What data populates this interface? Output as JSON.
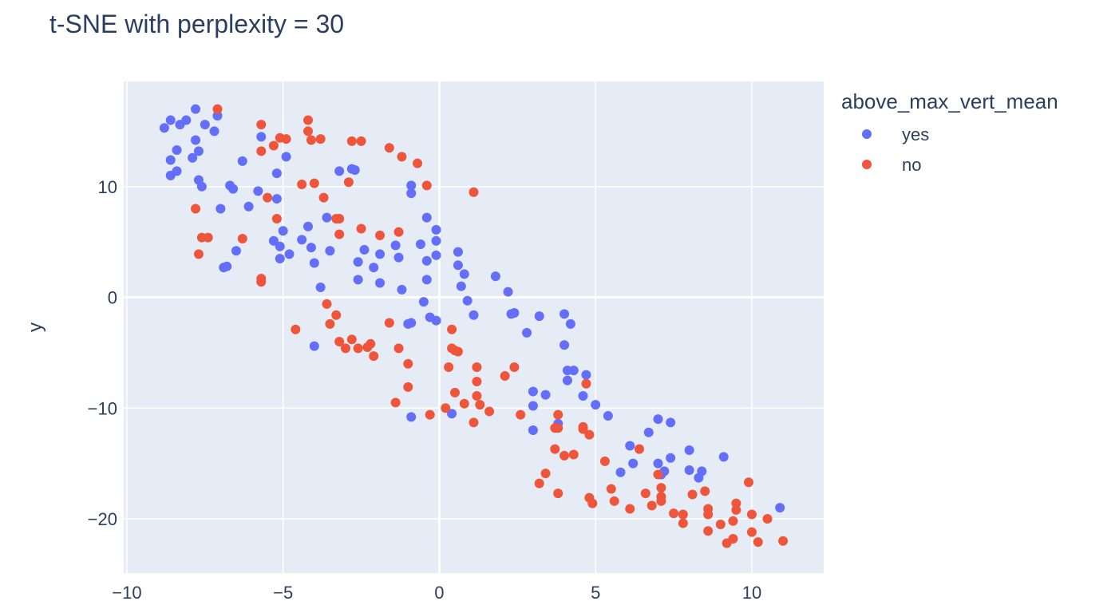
{
  "chart_data": {
    "type": "scatter",
    "title": "t-SNE with perplexity = 30",
    "xlabel": "",
    "ylabel": "y",
    "xlim": [
      -10.1,
      12.3
    ],
    "ylim": [
      -24.9,
      19.5
    ],
    "xticks": [
      -10,
      -5,
      0,
      5,
      10
    ],
    "yticks": [
      -20,
      -10,
      0,
      10
    ],
    "tick_labels_x": [
      "−10",
      "−5",
      "0",
      "5",
      "10"
    ],
    "tick_labels_y": [
      "−20",
      "−10",
      "0",
      "10"
    ],
    "grid": true,
    "legend": {
      "title": "above_max_vert_mean",
      "placement": "right"
    },
    "series": [
      {
        "name": "yes",
        "color": "#636efa",
        "points": [
          [
            -8.8,
            15.3
          ],
          [
            -8.6,
            16.0
          ],
          [
            -8.6,
            12.4
          ],
          [
            -8.6,
            11.0
          ],
          [
            -8.4,
            11.4
          ],
          [
            -8.4,
            13.3
          ],
          [
            -8.3,
            15.6
          ],
          [
            -8.1,
            16.0
          ],
          [
            -7.9,
            12.6
          ],
          [
            -7.8,
            17.0
          ],
          [
            -7.8,
            14.2
          ],
          [
            -7.7,
            13.2
          ],
          [
            -7.7,
            10.6
          ],
          [
            -7.6,
            10.0
          ],
          [
            -7.5,
            15.6
          ],
          [
            -7.2,
            15.0
          ],
          [
            -7.1,
            16.4
          ],
          [
            -7.0,
            8.0
          ],
          [
            -6.9,
            2.7
          ],
          [
            -6.8,
            2.8
          ],
          [
            -6.7,
            10.1
          ],
          [
            -6.6,
            9.8
          ],
          [
            -6.5,
            4.2
          ],
          [
            -6.3,
            12.3
          ],
          [
            -6.1,
            8.2
          ],
          [
            -5.8,
            9.6
          ],
          [
            -5.7,
            14.5
          ],
          [
            -5.3,
            5.1
          ],
          [
            -5.2,
            11.2
          ],
          [
            -5.2,
            8.9
          ],
          [
            -5.1,
            4.6
          ],
          [
            -5.1,
            3.5
          ],
          [
            -5.0,
            6.0
          ],
          [
            -4.9,
            12.7
          ],
          [
            -4.8,
            3.9
          ],
          [
            -4.4,
            5.2
          ],
          [
            -4.2,
            6.4
          ],
          [
            -4.1,
            4.5
          ],
          [
            -4.0,
            3.1
          ],
          [
            -4.0,
            -4.4
          ],
          [
            -3.8,
            0.9
          ],
          [
            -3.6,
            7.2
          ],
          [
            -3.5,
            4.2
          ],
          [
            -3.2,
            11.4
          ],
          [
            -2.8,
            11.6
          ],
          [
            -2.7,
            11.5
          ],
          [
            -2.6,
            3.2
          ],
          [
            -2.6,
            1.6
          ],
          [
            -2.4,
            4.3
          ],
          [
            -2.1,
            2.7
          ],
          [
            -1.9,
            1.3
          ],
          [
            -1.9,
            3.9
          ],
          [
            -1.4,
            4.7
          ],
          [
            -1.3,
            3.6
          ],
          [
            -1.2,
            0.7
          ],
          [
            -1.0,
            -2.4
          ],
          [
            -0.9,
            9.4
          ],
          [
            -0.9,
            10.1
          ],
          [
            -0.9,
            -2.3
          ],
          [
            -0.9,
            -10.8
          ],
          [
            -0.6,
            4.8
          ],
          [
            -0.5,
            -0.4
          ],
          [
            -0.4,
            7.2
          ],
          [
            -0.4,
            3.3
          ],
          [
            -0.4,
            1.6
          ],
          [
            -0.3,
            -1.8
          ],
          [
            -0.1,
            6.1
          ],
          [
            -0.1,
            5.1
          ],
          [
            -0.1,
            3.8
          ],
          [
            -0.1,
            -2.1
          ],
          [
            0.4,
            -10.5
          ],
          [
            0.6,
            4.1
          ],
          [
            0.6,
            2.9
          ],
          [
            0.7,
            1.0
          ],
          [
            0.8,
            2.1
          ],
          [
            0.9,
            -0.3
          ],
          [
            1.1,
            -1.6
          ],
          [
            1.8,
            1.9
          ],
          [
            2.2,
            0.5
          ],
          [
            2.3,
            -1.5
          ],
          [
            2.4,
            -1.4
          ],
          [
            2.8,
            -3.2
          ],
          [
            3.0,
            -8.5
          ],
          [
            3.0,
            -12.0
          ],
          [
            3.0,
            -9.8
          ],
          [
            3.2,
            -1.7
          ],
          [
            3.4,
            -8.8
          ],
          [
            3.8,
            -11.4
          ],
          [
            4.0,
            -1.5
          ],
          [
            4.0,
            -4.3
          ],
          [
            4.1,
            -7.5
          ],
          [
            4.1,
            -6.6
          ],
          [
            4.2,
            -2.4
          ],
          [
            4.3,
            -6.6
          ],
          [
            4.6,
            -8.9
          ],
          [
            4.7,
            -7.0
          ],
          [
            5.0,
            -9.7
          ],
          [
            5.4,
            -10.7
          ],
          [
            5.8,
            -15.8
          ],
          [
            6.1,
            -13.4
          ],
          [
            6.2,
            -15.0
          ],
          [
            6.7,
            -12.2
          ],
          [
            7.0,
            -11.0
          ],
          [
            7.0,
            -15.0
          ],
          [
            7.1,
            -16.0
          ],
          [
            7.2,
            -15.7
          ],
          [
            7.4,
            -14.5
          ],
          [
            7.4,
            -11.3
          ],
          [
            8.0,
            -13.8
          ],
          [
            8.0,
            -15.6
          ],
          [
            8.3,
            -16.3
          ],
          [
            8.4,
            -15.7
          ],
          [
            9.1,
            -14.4
          ],
          [
            10.9,
            -19.0
          ]
        ]
      },
      {
        "name": "no",
        "color": "#ef553b",
        "points": [
          [
            -7.1,
            17.0
          ],
          [
            -7.8,
            8.0
          ],
          [
            -7.6,
            5.4
          ],
          [
            -7.4,
            5.4
          ],
          [
            -7.7,
            3.9
          ],
          [
            -6.3,
            5.3
          ],
          [
            -5.7,
            15.6
          ],
          [
            -5.7,
            13.2
          ],
          [
            -5.5,
            9.0
          ],
          [
            -5.7,
            1.7
          ],
          [
            -5.7,
            1.4
          ],
          [
            -5.3,
            13.7
          ],
          [
            -5.2,
            7.1
          ],
          [
            -5.1,
            14.4
          ],
          [
            -4.9,
            14.3
          ],
          [
            -4.4,
            10.2
          ],
          [
            -4.2,
            16.0
          ],
          [
            -4.2,
            15.0
          ],
          [
            -4.1,
            14.2
          ],
          [
            -4.0,
            10.3
          ],
          [
            -3.8,
            14.3
          ],
          [
            -3.7,
            9.0
          ],
          [
            -3.3,
            7.1
          ],
          [
            -3.2,
            5.7
          ],
          [
            -3.2,
            7.1
          ],
          [
            -2.9,
            10.4
          ],
          [
            -2.8,
            14.1
          ],
          [
            -2.5,
            14.1
          ],
          [
            -2.5,
            6.2
          ],
          [
            -1.9,
            5.6
          ],
          [
            -1.6,
            13.5
          ],
          [
            -1.2,
            12.7
          ],
          [
            -1.3,
            5.9
          ],
          [
            -0.7,
            12.1
          ],
          [
            -0.4,
            10.1
          ],
          [
            -3.0,
            -4.6
          ],
          [
            -2.6,
            -4.6
          ],
          [
            -3.2,
            -4.0
          ],
          [
            -2.8,
            -3.8
          ],
          [
            -3.6,
            -0.6
          ],
          [
            -3.5,
            -2.4
          ],
          [
            -3.3,
            -1.6
          ],
          [
            -2.2,
            -4.2
          ],
          [
            -2.1,
            -5.3
          ],
          [
            -1.6,
            -2.3
          ],
          [
            -1.3,
            -4.6
          ],
          [
            -1.0,
            -6.0
          ],
          [
            -1.0,
            -8.1
          ],
          [
            -1.4,
            -9.5
          ],
          [
            -0.3,
            -10.6
          ],
          [
            -4.6,
            -2.9
          ],
          [
            -2.3,
            -4.5
          ],
          [
            0.3,
            -6.3
          ],
          [
            0.4,
            -4.6
          ],
          [
            0.4,
            -2.9
          ],
          [
            0.5,
            -4.8
          ],
          [
            0.5,
            -8.6
          ],
          [
            0.6,
            -4.9
          ],
          [
            0.8,
            -9.6
          ],
          [
            1.1,
            -11.3
          ],
          [
            1.2,
            -8.9
          ],
          [
            1.3,
            -9.7
          ],
          [
            1.2,
            -6.3
          ],
          [
            1.2,
            -7.6
          ],
          [
            1.6,
            -10.3
          ],
          [
            2.1,
            -7.1
          ],
          [
            2.4,
            -6.3
          ],
          [
            2.6,
            -10.6
          ],
          [
            1.1,
            9.5
          ],
          [
            3.2,
            -16.8
          ],
          [
            3.4,
            -15.9
          ],
          [
            3.8,
            -11.8
          ],
          [
            3.7,
            -11.8
          ],
          [
            3.7,
            -13.7
          ],
          [
            3.8,
            -10.6
          ],
          [
            3.8,
            -17.7
          ],
          [
            4.0,
            -14.3
          ],
          [
            4.3,
            -14.2
          ],
          [
            4.6,
            -11.9
          ],
          [
            4.7,
            -7.8
          ],
          [
            4.8,
            -12.4
          ],
          [
            4.8,
            -18.1
          ],
          [
            4.9,
            -18.6
          ],
          [
            5.3,
            -14.8
          ],
          [
            5.5,
            -17.3
          ],
          [
            5.6,
            -18.4
          ],
          [
            6.1,
            -19.1
          ],
          [
            6.4,
            -13.7
          ],
          [
            6.6,
            -17.7
          ],
          [
            6.8,
            -18.8
          ],
          [
            7.0,
            -16.0
          ],
          [
            7.1,
            -17.2
          ],
          [
            7.1,
            -18.0
          ],
          [
            7.1,
            -18.4
          ],
          [
            7.5,
            -19.5
          ],
          [
            7.8,
            -19.6
          ],
          [
            7.8,
            -20.4
          ],
          [
            8.1,
            -17.8
          ],
          [
            8.5,
            -17.5
          ],
          [
            8.6,
            -19.1
          ],
          [
            8.6,
            -19.6
          ],
          [
            8.6,
            -21.1
          ],
          [
            9.0,
            -20.5
          ],
          [
            9.2,
            -22.2
          ],
          [
            9.4,
            -21.8
          ],
          [
            9.5,
            -18.6
          ],
          [
            9.5,
            -19.2
          ],
          [
            9.4,
            -20.2
          ],
          [
            9.9,
            -16.7
          ],
          [
            10.0,
            -19.6
          ],
          [
            10.0,
            -21.2
          ],
          [
            10.2,
            -22.1
          ],
          [
            10.5,
            -20.0
          ],
          [
            11.0,
            -22.0
          ],
          [
            0.2,
            -10.0
          ],
          [
            4.6,
            -11.7
          ]
        ]
      }
    ]
  }
}
